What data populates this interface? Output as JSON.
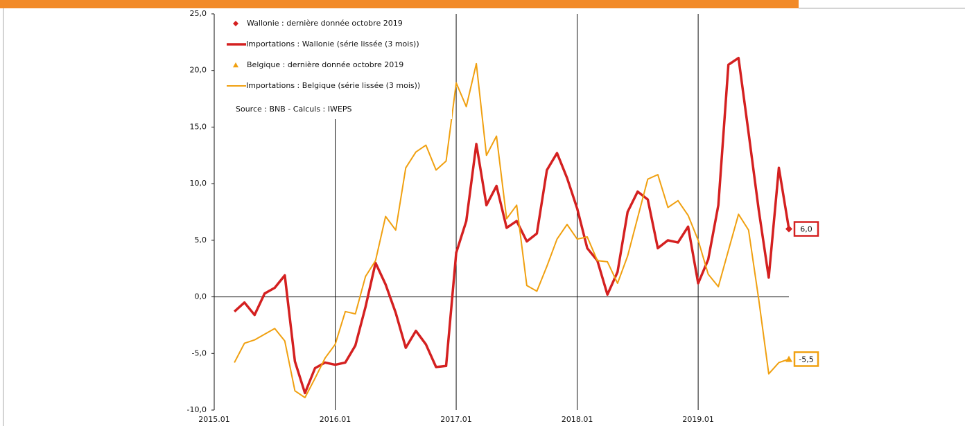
{
  "chart_data": {
    "type": "line",
    "source": "Source : BNB - Calculs : IWEPS",
    "ylim": [
      -10,
      25
    ],
    "yticks": [
      {
        "value": -10,
        "label": "-10,0"
      },
      {
        "value": -5,
        "label": "-5,0"
      },
      {
        "value": 0,
        "label": "0,0"
      },
      {
        "value": 5,
        "label": "5,0"
      },
      {
        "value": 10,
        "label": "10,0"
      },
      {
        "value": 15,
        "label": "15,0"
      },
      {
        "value": 20,
        "label": "20,0"
      },
      {
        "value": 25,
        "label": "25,0"
      }
    ],
    "xlim": [
      "2015.01",
      "2019.10"
    ],
    "xticks": [
      "2015.01",
      "2016.01",
      "2017.01",
      "2018.01",
      "2019.01"
    ],
    "grid": true,
    "series": [
      {
        "name": "Wallonie : dernière donnée octobre 2019",
        "color": "#d42020",
        "marker": "diamond",
        "x": [
          "2019.10"
        ],
        "values": [
          6.0
        ],
        "value_labels": [
          "6,0"
        ]
      },
      {
        "name": "Importations : Wallonie (série lissée (3 mois))",
        "color": "#d42020",
        "width": 3.5,
        "x": [
          "2015.03",
          "2015.04",
          "2015.05",
          "2015.06",
          "2015.07",
          "2015.08",
          "2015.09",
          "2015.10",
          "2015.11",
          "2015.12",
          "2016.01",
          "2016.02",
          "2016.03",
          "2016.04",
          "2016.05",
          "2016.06",
          "2016.07",
          "2016.08",
          "2016.09",
          "2016.10",
          "2016.11",
          "2016.12",
          "2017.01",
          "2017.02",
          "2017.03",
          "2017.04",
          "2017.05",
          "2017.06",
          "2017.07",
          "2017.08",
          "2017.09",
          "2017.10",
          "2017.11",
          "2017.12",
          "2018.01",
          "2018.02",
          "2018.03",
          "2018.04",
          "2018.05",
          "2018.06",
          "2018.07",
          "2018.08",
          "2018.09",
          "2018.10",
          "2018.11",
          "2018.12",
          "2019.01",
          "2019.02",
          "2019.03",
          "2019.04",
          "2019.05",
          "2019.06",
          "2019.07",
          "2019.08",
          "2019.09",
          "2019.10"
        ],
        "values": [
          -1.3,
          -0.5,
          -1.6,
          0.3,
          0.8,
          1.9,
          -5.7,
          -8.5,
          -6.3,
          -5.8,
          -6.0,
          -5.8,
          -4.3,
          -0.9,
          3.0,
          1.1,
          -1.4,
          -4.5,
          -3.0,
          -4.2,
          -6.2,
          -6.1,
          3.9,
          6.7,
          13.5,
          8.1,
          9.8,
          6.1,
          6.7,
          4.9,
          5.6,
          11.2,
          12.7,
          10.5,
          7.8,
          4.3,
          3.2,
          0.2,
          2.2,
          7.5,
          9.3,
          8.6,
          4.3,
          5.0,
          4.8,
          6.2,
          1.2,
          3.3,
          8.1,
          20.5,
          21.1,
          14.5,
          7.7,
          1.7,
          11.4,
          6.0
        ]
      },
      {
        "name": "Belgique : dernière donnée octobre 2019",
        "color": "#f0a010",
        "marker": "triangle",
        "x": [
          "2019.10"
        ],
        "values": [
          -5.5
        ],
        "value_labels": [
          "-5,5"
        ]
      },
      {
        "name": "Importations : Belgique (série lissée (3 mois))",
        "color": "#f0a010",
        "width": 2,
        "x": [
          "2015.03",
          "2015.04",
          "2015.05",
          "2015.06",
          "2015.07",
          "2015.08",
          "2015.09",
          "2015.10",
          "2015.11",
          "2015.12",
          "2016.01",
          "2016.02",
          "2016.03",
          "2016.04",
          "2016.05",
          "2016.06",
          "2016.07",
          "2016.08",
          "2016.09",
          "2016.10",
          "2016.11",
          "2016.12",
          "2017.01",
          "2017.02",
          "2017.03",
          "2017.04",
          "2017.05",
          "2017.06",
          "2017.07",
          "2017.08",
          "2017.09",
          "2017.10",
          "2017.11",
          "2017.12",
          "2018.01",
          "2018.02",
          "2018.03",
          "2018.04",
          "2018.05",
          "2018.06",
          "2018.07",
          "2018.08",
          "2018.09",
          "2018.10",
          "2018.11",
          "2018.12",
          "2019.01",
          "2019.02",
          "2019.03",
          "2019.04",
          "2019.05",
          "2019.06",
          "2019.07",
          "2019.08",
          "2019.09",
          "2019.10"
        ],
        "values": [
          -5.8,
          -4.1,
          -3.8,
          -3.3,
          -2.8,
          -3.9,
          -8.3,
          -8.9,
          -7.2,
          -5.4,
          -4.2,
          -1.3,
          -1.5,
          1.8,
          3.2,
          7.1,
          5.9,
          11.4,
          12.8,
          13.4,
          11.2,
          12.0,
          18.9,
          16.8,
          20.6,
          12.5,
          14.2,
          6.9,
          8.1,
          1.0,
          0.5,
          2.7,
          5.1,
          6.4,
          5.1,
          5.3,
          3.2,
          3.1,
          1.2,
          3.6,
          7.0,
          10.4,
          10.8,
          7.9,
          8.5,
          7.2,
          5.0,
          2.0,
          0.9,
          4.1,
          7.3,
          5.9,
          -0.2,
          -6.8,
          -5.8,
          -5.5
        ]
      }
    ]
  }
}
